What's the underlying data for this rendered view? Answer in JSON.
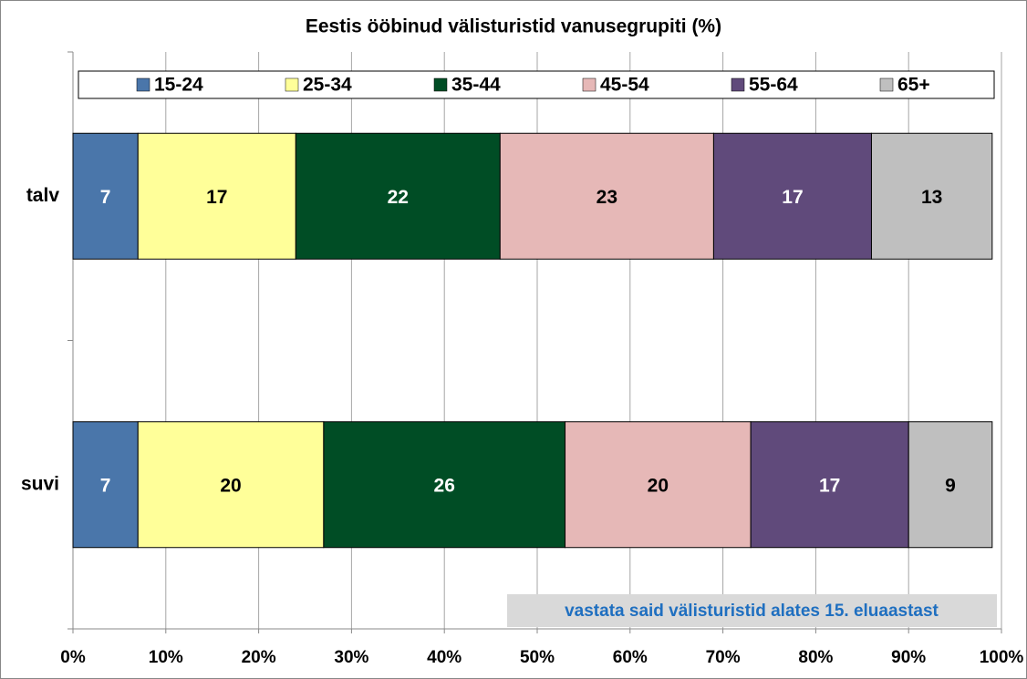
{
  "chart_data": {
    "type": "stacked_bar_horizontal",
    "title": "Eestis ööbinud välisturistid vanusegrupiti (%)",
    "categories": [
      "talv",
      "suvi"
    ],
    "series": [
      {
        "name": "15-24",
        "color": "#4a76aa",
        "values": [
          7,
          7
        ]
      },
      {
        "name": "25-34",
        "color": "#ffff99",
        "values": [
          17,
          20
        ]
      },
      {
        "name": "35-44",
        "color": "#004d25",
        "values": [
          22,
          26
        ]
      },
      {
        "name": "45-54",
        "color": "#e6b8b7",
        "values": [
          23,
          20
        ]
      },
      {
        "name": "55-64",
        "color": "#604a7b",
        "values": [
          17,
          17
        ]
      },
      {
        "name": "65+",
        "color": "#bfbfbf",
        "values": [
          13,
          9
        ]
      }
    ],
    "xlim": [
      0,
      100
    ],
    "xticks": [
      {
        "value": 0,
        "label": "0%"
      },
      {
        "value": 10,
        "label": "10%"
      },
      {
        "value": 20,
        "label": "20%"
      },
      {
        "value": 30,
        "label": "30%"
      },
      {
        "value": 40,
        "label": "40%"
      },
      {
        "value": 50,
        "label": "50%"
      },
      {
        "value": 60,
        "label": "60%"
      },
      {
        "value": 70,
        "label": "70%"
      },
      {
        "value": 80,
        "label": "80%"
      },
      {
        "value": 90,
        "label": "90%"
      },
      {
        "value": 100,
        "label": "100%"
      }
    ],
    "grid": true,
    "legend": "top",
    "annotation": "vastata said välisturistid alates 15. eluaastast"
  }
}
